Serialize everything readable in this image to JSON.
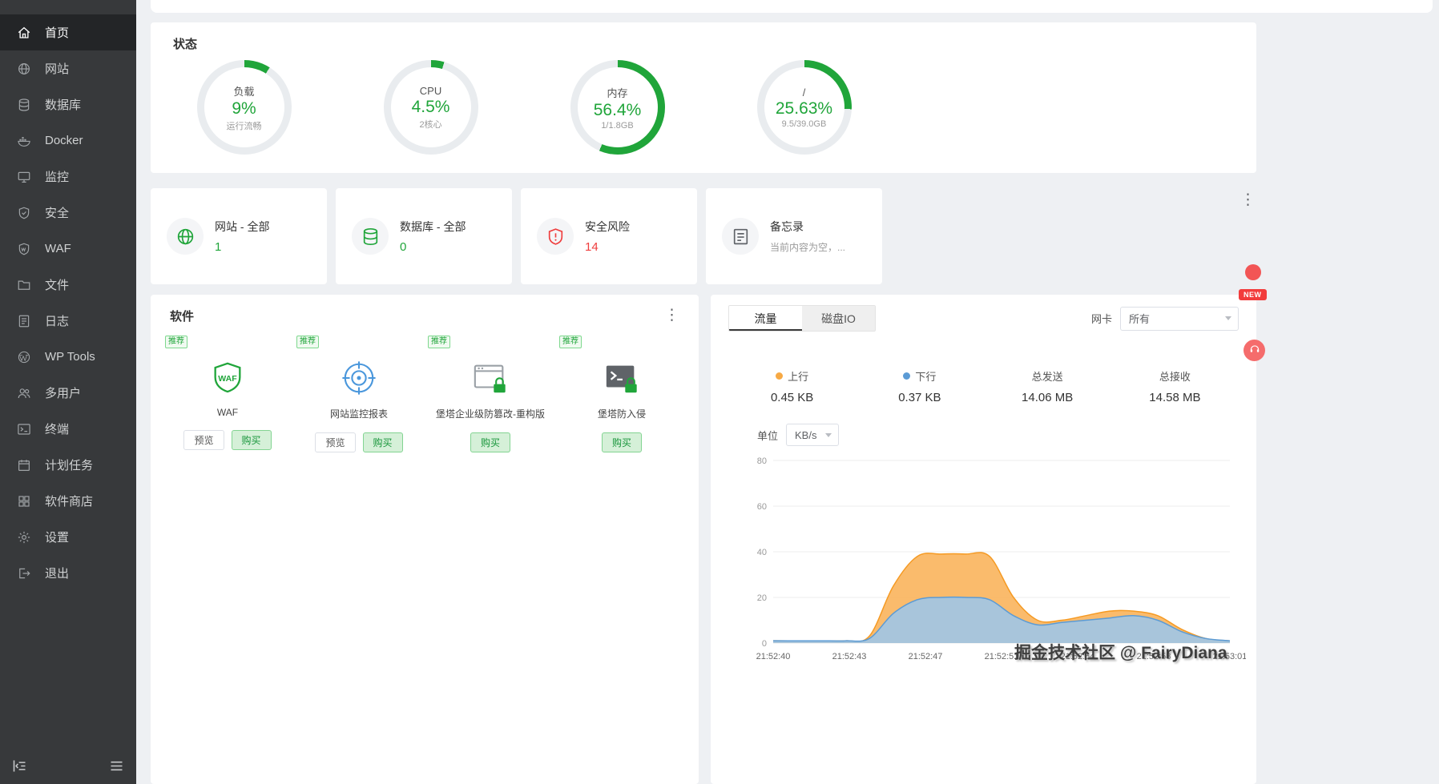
{
  "colors": {
    "accent_green": "#20a53a",
    "danger_red": "#ef3e3e",
    "upload_orange": "#f7a944",
    "download_blue": "#5b9bd5"
  },
  "sidebar": {
    "items": [
      {
        "key": "home",
        "icon": "home-icon",
        "label": "首页",
        "active": true
      },
      {
        "key": "website",
        "icon": "globe-icon",
        "label": "网站",
        "active": false
      },
      {
        "key": "database",
        "icon": "database-icon",
        "label": "数据库",
        "active": false
      },
      {
        "key": "docker",
        "icon": "docker-icon",
        "label": "Docker",
        "active": false
      },
      {
        "key": "monitor",
        "icon": "monitor-icon",
        "label": "监控",
        "active": false
      },
      {
        "key": "security",
        "icon": "shield-check-icon",
        "label": "安全",
        "active": false
      },
      {
        "key": "waf",
        "icon": "waf-shield-icon",
        "label": "WAF",
        "active": false
      },
      {
        "key": "files",
        "icon": "folder-icon",
        "label": "文件",
        "active": false
      },
      {
        "key": "logs",
        "icon": "log-file-icon",
        "label": "日志",
        "active": false
      },
      {
        "key": "wp-tools",
        "icon": "wordpress-icon",
        "label": "WP Tools",
        "active": false
      },
      {
        "key": "multi-user",
        "icon": "users-icon",
        "label": "多用户",
        "active": false
      },
      {
        "key": "terminal",
        "icon": "terminal-icon",
        "label": "终端",
        "active": false
      },
      {
        "key": "cron",
        "icon": "calendar-icon",
        "label": "计划任务",
        "active": false
      },
      {
        "key": "app-store",
        "icon": "store-grid-icon",
        "label": "软件商店",
        "active": false
      },
      {
        "key": "settings",
        "icon": "gear-icon",
        "label": "设置",
        "active": false
      },
      {
        "key": "logout",
        "icon": "logout-icon",
        "label": "退出",
        "active": false
      }
    ]
  },
  "status": {
    "title": "状态",
    "gauges": [
      {
        "key": "load",
        "label": "负载",
        "value": "9%",
        "percent": 9,
        "sub": "运行流畅"
      },
      {
        "key": "cpu",
        "label": "CPU",
        "value": "4.5%",
        "percent": 4.5,
        "sub": "2核心"
      },
      {
        "key": "memory",
        "label": "内存",
        "value": "56.4%",
        "percent": 56.4,
        "sub": "1/1.8GB"
      },
      {
        "key": "disk-root",
        "label": "/",
        "value": "25.63%",
        "percent": 25.63,
        "sub": "9.5/39.0GB"
      }
    ]
  },
  "summary_cards": [
    {
      "key": "sites",
      "icon": "globe-icon",
      "icon_color": "#20a53a",
      "title": "网站 - 全部",
      "value": "1",
      "value_color": "#20a53a",
      "muted": false
    },
    {
      "key": "databases",
      "icon": "database-icon",
      "icon_color": "#20a53a",
      "title": "数据库 - 全部",
      "value": "0",
      "value_color": "#20a53a",
      "muted": false
    },
    {
      "key": "security-risk",
      "icon": "shield-alert-icon",
      "icon_color": "#ef3e3e",
      "title": "安全风险",
      "value": "14",
      "value_color": "#ef3e3e",
      "muted": false
    },
    {
      "key": "memo",
      "icon": "memo-icon",
      "icon_color": "#5f6368",
      "title": "备忘录",
      "value": "当前内容为空，...",
      "value_color": "#9a9a9a",
      "muted": true
    }
  ],
  "summary_row_menu": "⋮",
  "software": {
    "title": "软件",
    "recommend_badge": "推荐",
    "menu": "⋮",
    "items": [
      {
        "key": "waf",
        "icon": "waf-logo-icon",
        "name": "WAF",
        "buttons": [
          {
            "key": "preview",
            "label": "预览",
            "style": "plain"
          },
          {
            "key": "buy",
            "label": "购买",
            "style": "green"
          }
        ]
      },
      {
        "key": "site-monitor-report",
        "icon": "target-icon",
        "name": "网站监控报表",
        "buttons": [
          {
            "key": "preview",
            "label": "预览",
            "style": "plain"
          },
          {
            "key": "buy",
            "label": "购买",
            "style": "green"
          }
        ]
      },
      {
        "key": "tamper-proof",
        "icon": "window-lock-icon",
        "name": "堡塔企业级防篡改-重构版",
        "buttons": [
          {
            "key": "buy",
            "label": "购买",
            "style": "green"
          }
        ]
      },
      {
        "key": "intrusion-defense",
        "icon": "terminal-lock-icon",
        "name": "堡塔防入侵",
        "buttons": [
          {
            "key": "buy",
            "label": "购买",
            "style": "green"
          }
        ]
      }
    ]
  },
  "traffic": {
    "tabs": [
      {
        "key": "traffic",
        "label": "流量",
        "active": true
      },
      {
        "key": "disk-io",
        "label": "磁盘IO",
        "active": false
      }
    ],
    "network_label": "网卡",
    "network_value": "所有",
    "legend": [
      {
        "key": "up",
        "label": "上行",
        "value": "0.45 KB",
        "dot": "#f7a944"
      },
      {
        "key": "down",
        "label": "下行",
        "value": "0.37 KB",
        "dot": "#5b9bd5"
      },
      {
        "key": "total-sent",
        "label": "总发送",
        "value": "14.06 MB",
        "dot": ""
      },
      {
        "key": "total-received",
        "label": "总接收",
        "value": "14.58 MB",
        "dot": ""
      }
    ],
    "unit_label": "单位",
    "unit_value": "KB/s"
  },
  "chart_data": {
    "type": "area",
    "title": "流量",
    "xlabel": "",
    "ylabel": "KB/s",
    "x_labels": [
      "21:52:40",
      "21:52:43",
      "21:52:47",
      "21:52:51",
      "21:52:54",
      "21:52:58",
      "21:53:01"
    ],
    "ylim": [
      0,
      80
    ],
    "yticks": [
      0,
      20,
      40,
      60,
      80
    ],
    "grid": true,
    "legend_position": "top",
    "series": [
      {
        "name": "上行",
        "color": "#f59a23",
        "fill": "#f9b45c",
        "values": [
          1,
          1,
          1,
          1,
          3,
          25,
          38,
          39,
          39,
          38,
          20,
          10,
          10,
          12,
          14,
          14,
          12,
          6,
          2,
          1
        ]
      },
      {
        "name": "下行",
        "color": "#5b9bd5",
        "fill": "#9ec6e8",
        "values": [
          1,
          1,
          1,
          1,
          2,
          13,
          19,
          20,
          20,
          19,
          12,
          8,
          9,
          10,
          11,
          12,
          10,
          5,
          2,
          1
        ]
      }
    ]
  },
  "floating": {
    "new_label": "NEW"
  },
  "watermark": "掘金技术社区 @ FairyDiana"
}
